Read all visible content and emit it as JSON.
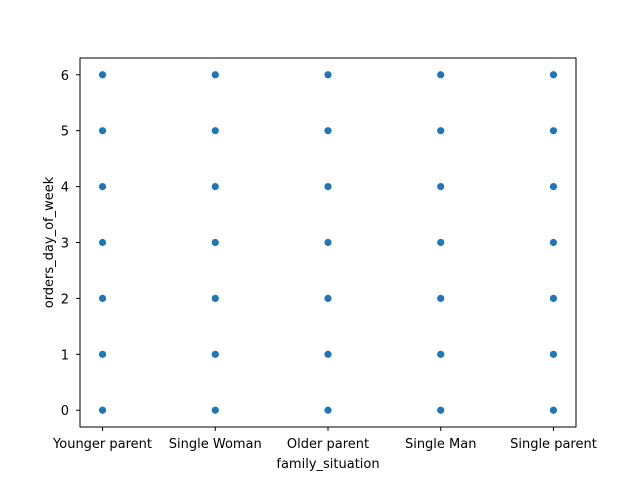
{
  "chart_data": {
    "type": "scatter",
    "title": "",
    "xlabel": "family_situation",
    "ylabel": "orders_day_of_week",
    "categories": [
      "Younger parent",
      "Single Woman",
      "Older parent",
      "Single Man",
      "Single parent"
    ],
    "y_ticks": [
      0,
      1,
      2,
      3,
      4,
      5,
      6
    ],
    "ylim": [
      -0.3,
      6.3
    ],
    "grid": false,
    "legend": "none",
    "marker_color": "#1f77b4",
    "points": [
      {
        "x": "Younger parent",
        "y": 0
      },
      {
        "x": "Younger parent",
        "y": 1
      },
      {
        "x": "Younger parent",
        "y": 2
      },
      {
        "x": "Younger parent",
        "y": 3
      },
      {
        "x": "Younger parent",
        "y": 4
      },
      {
        "x": "Younger parent",
        "y": 5
      },
      {
        "x": "Younger parent",
        "y": 6
      },
      {
        "x": "Single Woman",
        "y": 0
      },
      {
        "x": "Single Woman",
        "y": 1
      },
      {
        "x": "Single Woman",
        "y": 2
      },
      {
        "x": "Single Woman",
        "y": 3
      },
      {
        "x": "Single Woman",
        "y": 4
      },
      {
        "x": "Single Woman",
        "y": 5
      },
      {
        "x": "Single Woman",
        "y": 6
      },
      {
        "x": "Older parent",
        "y": 0
      },
      {
        "x": "Older parent",
        "y": 1
      },
      {
        "x": "Older parent",
        "y": 2
      },
      {
        "x": "Older parent",
        "y": 3
      },
      {
        "x": "Older parent",
        "y": 4
      },
      {
        "x": "Older parent",
        "y": 5
      },
      {
        "x": "Older parent",
        "y": 6
      },
      {
        "x": "Single Man",
        "y": 0
      },
      {
        "x": "Single Man",
        "y": 1
      },
      {
        "x": "Single Man",
        "y": 2
      },
      {
        "x": "Single Man",
        "y": 3
      },
      {
        "x": "Single Man",
        "y": 4
      },
      {
        "x": "Single Man",
        "y": 5
      },
      {
        "x": "Single Man",
        "y": 6
      },
      {
        "x": "Single parent",
        "y": 0
      },
      {
        "x": "Single parent",
        "y": 1
      },
      {
        "x": "Single parent",
        "y": 2
      },
      {
        "x": "Single parent",
        "y": 3
      },
      {
        "x": "Single parent",
        "y": 4
      },
      {
        "x": "Single parent",
        "y": 5
      },
      {
        "x": "Single parent",
        "y": 6
      }
    ]
  }
}
